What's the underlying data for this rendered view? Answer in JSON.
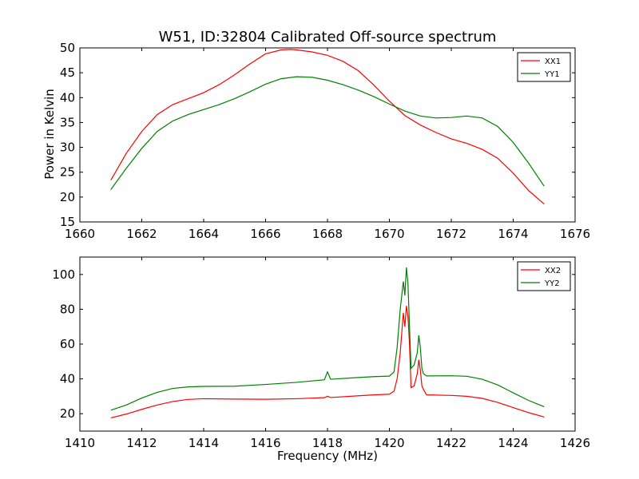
{
  "chart_data": [
    {
      "type": "line",
      "title": "W51, ID:32804 Calibrated Off-source spectrum",
      "xlabel": "",
      "ylabel": "Power in Kelvin",
      "xlim": [
        1660,
        1676
      ],
      "ylim": [
        15,
        50
      ],
      "xticks": [
        1660,
        1662,
        1664,
        1666,
        1668,
        1670,
        1672,
        1674,
        1676
      ],
      "yticks": [
        15,
        20,
        25,
        30,
        35,
        40,
        45,
        50
      ],
      "legend_position": "top-right",
      "series": [
        {
          "name": "XX1",
          "color": "#ff0000",
          "x": [
            1661.0,
            1661.5,
            1662.0,
            1662.5,
            1663.0,
            1663.5,
            1664.0,
            1664.5,
            1665.0,
            1665.5,
            1666.0,
            1666.5,
            1666.8,
            1667.0,
            1667.5,
            1668.0,
            1668.5,
            1669.0,
            1669.5,
            1670.0,
            1670.5,
            1671.0,
            1671.5,
            1672.0,
            1672.5,
            1673.0,
            1673.5,
            1674.0,
            1674.5,
            1675.0
          ],
          "y": [
            23.4,
            28.8,
            33.2,
            36.6,
            38.6,
            39.8,
            41.0,
            42.6,
            44.6,
            46.8,
            48.8,
            49.6,
            49.7,
            49.6,
            49.2,
            48.5,
            47.3,
            45.4,
            42.5,
            39.3,
            36.4,
            34.5,
            33.0,
            31.7,
            30.8,
            29.6,
            27.8,
            24.8,
            21.3,
            18.6
          ]
        },
        {
          "name": "YY1",
          "color": "#008000",
          "x": [
            1661.0,
            1661.5,
            1662.0,
            1662.5,
            1663.0,
            1663.5,
            1664.0,
            1664.5,
            1665.0,
            1665.5,
            1666.0,
            1666.5,
            1667.0,
            1667.5,
            1668.0,
            1668.5,
            1669.0,
            1669.5,
            1670.0,
            1670.5,
            1671.0,
            1671.5,
            1672.0,
            1672.5,
            1673.0,
            1673.5,
            1674.0,
            1674.5,
            1675.0
          ],
          "y": [
            21.5,
            25.8,
            29.8,
            33.2,
            35.3,
            36.6,
            37.6,
            38.6,
            39.8,
            41.2,
            42.7,
            43.8,
            44.2,
            44.1,
            43.5,
            42.6,
            41.5,
            40.2,
            38.7,
            37.3,
            36.3,
            35.9,
            36.0,
            36.3,
            35.9,
            34.2,
            31.0,
            26.8,
            22.2
          ]
        }
      ]
    },
    {
      "type": "line",
      "title": "",
      "xlabel": "Frequency (MHz)",
      "ylabel": "",
      "xlim": [
        1410,
        1426
      ],
      "ylim": [
        10,
        110
      ],
      "xticks": [
        1410,
        1412,
        1414,
        1416,
        1418,
        1420,
        1422,
        1424,
        1426
      ],
      "yticks": [
        20,
        40,
        60,
        80,
        100
      ],
      "legend_position": "top-right",
      "series": [
        {
          "name": "XX2",
          "color": "#ff0000",
          "x": [
            1411.0,
            1411.5,
            1412.0,
            1412.5,
            1413.0,
            1413.5,
            1414.0,
            1415.0,
            1416.0,
            1417.0,
            1417.9,
            1418.0,
            1418.1,
            1419.0,
            1419.5,
            1420.0,
            1420.15,
            1420.25,
            1420.35,
            1420.45,
            1420.5,
            1420.55,
            1420.6,
            1420.65,
            1420.7,
            1420.8,
            1420.9,
            1420.95,
            1421.0,
            1421.05,
            1421.1,
            1421.2,
            1422.0,
            1422.5,
            1423.0,
            1423.5,
            1424.0,
            1424.5,
            1425.0
          ],
          "y": [
            17.6,
            19.8,
            22.5,
            25.0,
            27.0,
            28.2,
            28.6,
            28.4,
            28.3,
            28.6,
            29.2,
            30.0,
            29.3,
            30.3,
            30.8,
            31.2,
            33.0,
            40.0,
            55.0,
            78.0,
            70.0,
            82.0,
            76.0,
            60.0,
            35.0,
            36.0,
            43.0,
            51.0,
            45.0,
            36.0,
            34.0,
            30.8,
            30.5,
            30.0,
            28.8,
            26.5,
            23.5,
            20.6,
            18.1
          ]
        },
        {
          "name": "YY2",
          "color": "#008000",
          "x": [
            1411.0,
            1411.5,
            1412.0,
            1412.5,
            1413.0,
            1413.5,
            1414.0,
            1415.0,
            1416.0,
            1417.0,
            1417.9,
            1418.0,
            1418.1,
            1419.0,
            1419.5,
            1420.0,
            1420.15,
            1420.25,
            1420.35,
            1420.45,
            1420.5,
            1420.55,
            1420.6,
            1420.65,
            1420.7,
            1420.8,
            1420.9,
            1420.95,
            1421.0,
            1421.05,
            1421.1,
            1421.2,
            1422.0,
            1422.5,
            1423.0,
            1423.5,
            1424.0,
            1424.5,
            1425.0
          ],
          "y": [
            22.0,
            25.0,
            29.0,
            32.3,
            34.5,
            35.4,
            35.7,
            35.8,
            36.8,
            38.0,
            39.5,
            44.0,
            39.8,
            40.8,
            41.3,
            41.6,
            44.0,
            58.0,
            80.0,
            96.0,
            88.0,
            104.0,
            95.0,
            70.0,
            46.0,
            48.0,
            55.0,
            65.0,
            58.0,
            46.0,
            43.0,
            41.7,
            41.8,
            41.5,
            39.8,
            36.5,
            32.0,
            27.6,
            24.0
          ]
        }
      ]
    }
  ]
}
